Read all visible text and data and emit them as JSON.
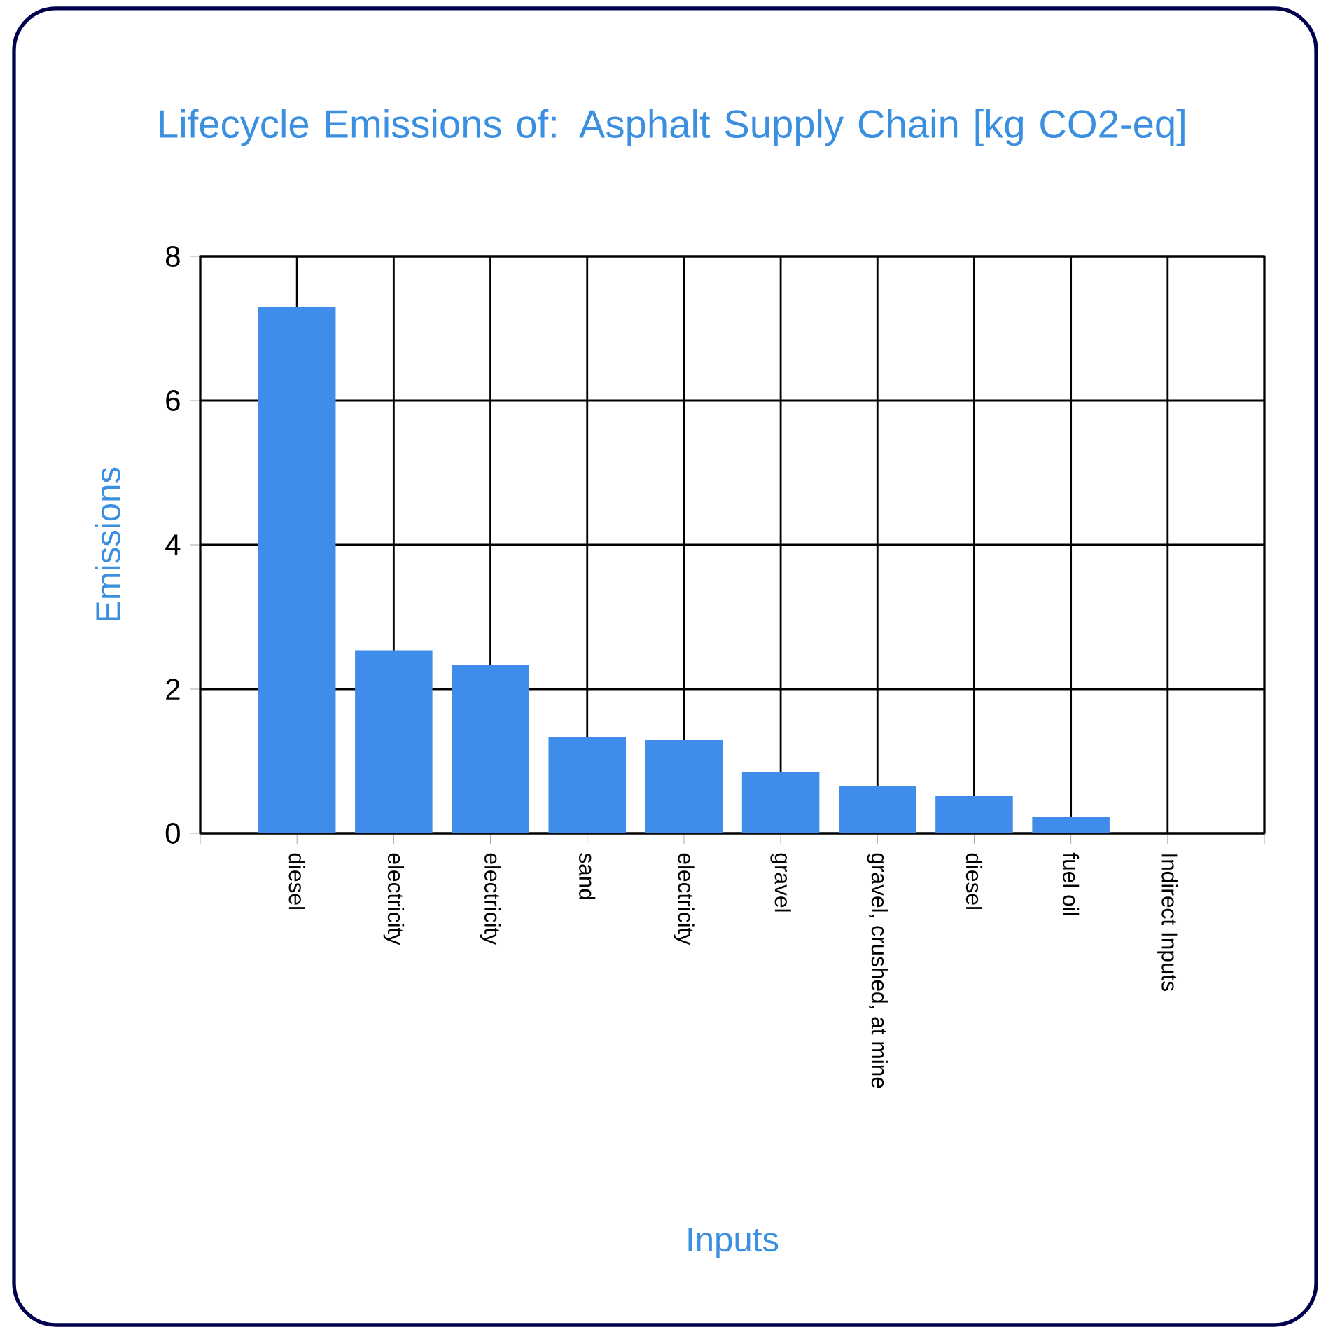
{
  "chart_data": {
    "type": "bar",
    "title": "Lifecycle Emissions of: Asphalt Supply Chain [kg CO2-eq]",
    "xlabel": "Inputs",
    "ylabel": "Emissions",
    "categories": [
      "diesel",
      "electricity",
      "electricity",
      "sand",
      "electricity",
      "gravel",
      "gravel, crushed, at mine",
      "diesel",
      "fuel oil",
      "Indirect Inputs"
    ],
    "values": [
      7.3,
      2.54,
      2.33,
      1.34,
      1.3,
      0.85,
      0.66,
      0.52,
      0.23,
      0
    ],
    "color": "#3f8ceb",
    "ylim": [
      0,
      8
    ],
    "yticks": [
      0,
      2,
      4,
      6,
      8
    ],
    "grid": true
  }
}
